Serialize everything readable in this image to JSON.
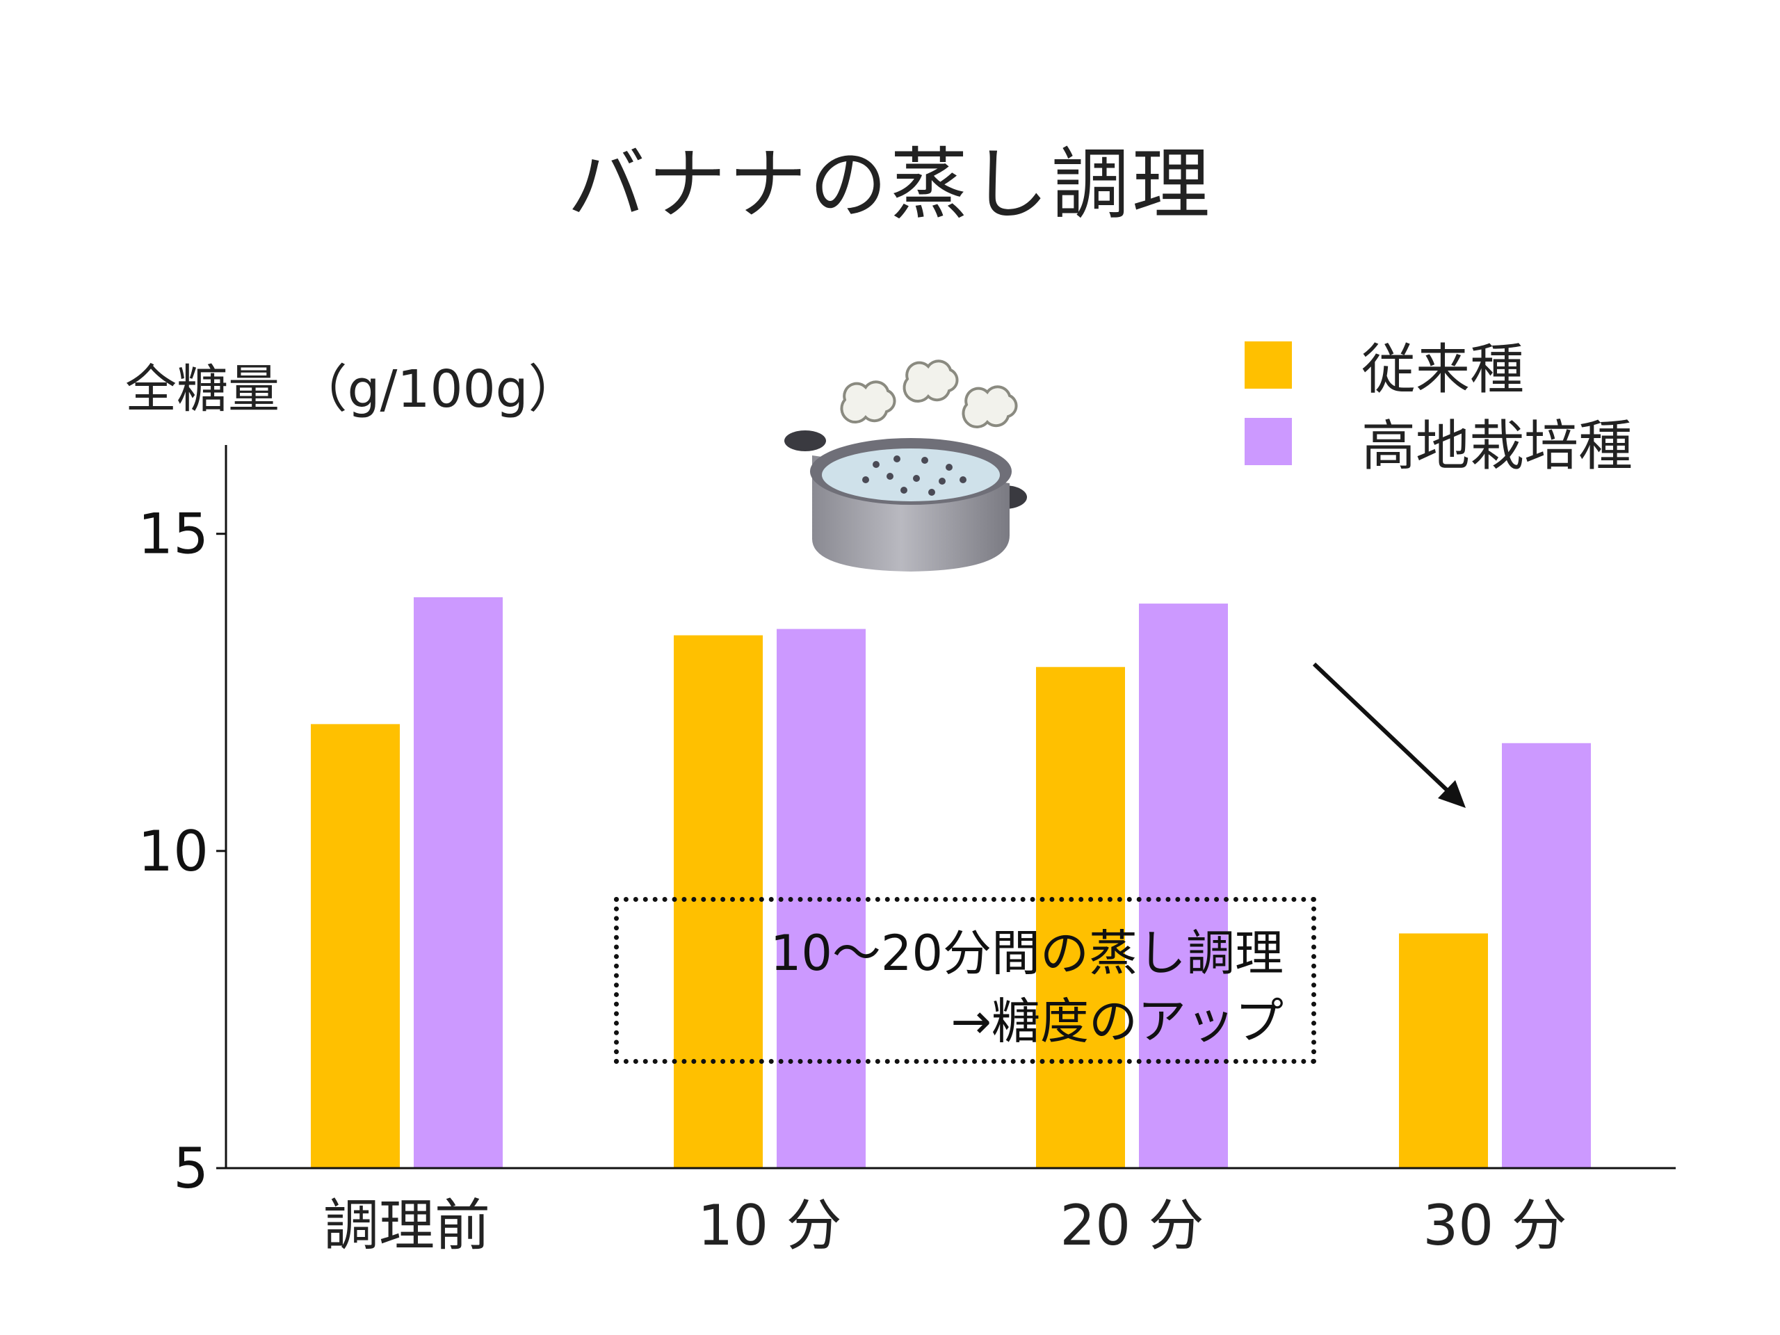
{
  "slide": {
    "title": "バナナの蒸し調理",
    "ylabel": "全糖量 （g/100g）",
    "note_line1": "10〜20分間の蒸し調理",
    "note_line2": "→糖度のアップ",
    "icon": "steamer-pot-icon"
  },
  "colors": {
    "conventional": "#FFC000",
    "highland": "#CC99FF",
    "axis": "#111111"
  },
  "chart_data": {
    "type": "bar",
    "title": "バナナの蒸し調理",
    "xlabel": "",
    "ylabel": "全糖量 （g/100g）",
    "categories": [
      "調理前",
      "10 分",
      "20 分",
      "30 分"
    ],
    "series": [
      {
        "name": "従来種",
        "values": [
          12.0,
          13.4,
          12.9,
          8.7
        ]
      },
      {
        "name": "高地栽培種",
        "values": [
          14.0,
          13.5,
          13.9,
          11.7
        ]
      }
    ],
    "ylim": [
      5,
      16.4
    ],
    "yticks": [
      5,
      10,
      15
    ],
    "grid": false,
    "legend": "top-right"
  }
}
